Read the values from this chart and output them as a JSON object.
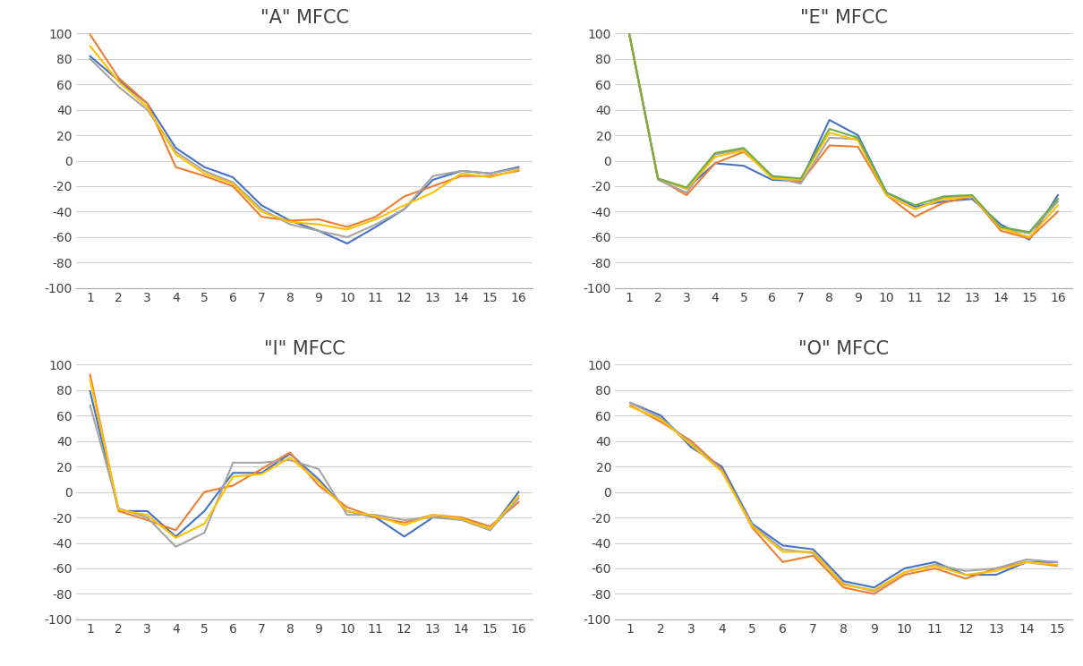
{
  "title_A": "\"A\" MFCC",
  "title_E": "\"E\" MFCC",
  "title_I": "\"I\" MFCC",
  "title_O": "\"O\" MFCC",
  "colors": [
    "#4472C4",
    "#ED7D31",
    "#A5A5A5",
    "#FFC000",
    "#70AD47"
  ],
  "ylim": [
    -100,
    100
  ],
  "yticks": [
    -100,
    -80,
    -60,
    -40,
    -20,
    0,
    20,
    40,
    60,
    80,
    100
  ],
  "A_series": [
    [
      82,
      63,
      45,
      10,
      -5,
      -13,
      -35,
      -47,
      -55,
      -65,
      -52,
      -38,
      -15,
      -8,
      -10,
      -5
    ],
    [
      99,
      65,
      45,
      -5,
      -12,
      -20,
      -44,
      -47,
      -46,
      -52,
      -44,
      -28,
      -20,
      -12,
      -12,
      -8
    ],
    [
      80,
      58,
      40,
      7,
      -8,
      -17,
      -38,
      -50,
      -55,
      -60,
      -50,
      -38,
      -12,
      -8,
      -10,
      -6
    ],
    [
      90,
      62,
      42,
      5,
      -10,
      -18,
      -40,
      -48,
      -50,
      -54,
      -46,
      -35,
      -25,
      -10,
      -13,
      -7
    ]
  ],
  "E_series": [
    [
      99,
      -14,
      -22,
      -2,
      -4,
      -15,
      -16,
      32,
      20,
      -25,
      -36,
      -32,
      -30,
      -50,
      -62,
      -27
    ],
    [
      99,
      -14,
      -27,
      -2,
      7,
      -12,
      -17,
      12,
      11,
      -27,
      -44,
      -33,
      -28,
      -55,
      -61,
      -40
    ],
    [
      99,
      -15,
      -25,
      5,
      9,
      -13,
      -18,
      18,
      17,
      -27,
      -38,
      -29,
      -28,
      -53,
      -57,
      -32
    ],
    [
      99,
      -14,
      -22,
      3,
      8,
      -14,
      -15,
      22,
      16,
      -27,
      -38,
      -30,
      -28,
      -53,
      -60,
      -35
    ],
    [
      99,
      -14,
      -21,
      6,
      10,
      -12,
      -14,
      25,
      18,
      -25,
      -35,
      -28,
      -27,
      -52,
      -56,
      -30
    ]
  ],
  "I_series": [
    [
      79,
      -15,
      -15,
      -35,
      -15,
      15,
      15,
      30,
      10,
      -15,
      -20,
      -35,
      -20,
      -20,
      -30,
      0
    ],
    [
      92,
      -15,
      -22,
      -30,
      0,
      5,
      18,
      31,
      5,
      -12,
      -20,
      -24,
      -18,
      -20,
      -27,
      -8
    ],
    [
      68,
      -13,
      -20,
      -43,
      -32,
      23,
      23,
      25,
      18,
      -18,
      -18,
      -22,
      -20,
      -22,
      -30,
      -5
    ],
    [
      88,
      -14,
      -18,
      -36,
      -25,
      12,
      14,
      27,
      8,
      -15,
      -19,
      -26,
      -18,
      -21,
      -29,
      -3
    ]
  ],
  "O_series": [
    [
      70,
      60,
      35,
      20,
      -25,
      -42,
      -45,
      -70,
      -75,
      -60,
      -55,
      -65,
      -65,
      -55,
      -55
    ],
    [
      68,
      55,
      40,
      18,
      -28,
      -55,
      -50,
      -75,
      -80,
      -65,
      -60,
      -68,
      -60,
      -55,
      -58
    ],
    [
      70,
      58,
      38,
      17,
      -26,
      -45,
      -48,
      -72,
      -78,
      -63,
      -57,
      -62,
      -60,
      -53,
      -55
    ],
    [
      67,
      57,
      37,
      16,
      -27,
      -47,
      -47,
      -73,
      -77,
      -63,
      -58,
      -65,
      -62,
      -55,
      -57
    ]
  ],
  "A_xticks": [
    1,
    2,
    3,
    4,
    5,
    6,
    7,
    8,
    9,
    10,
    11,
    12,
    13,
    14,
    15,
    16
  ],
  "E_xticks": [
    1,
    2,
    3,
    4,
    5,
    6,
    7,
    8,
    9,
    10,
    11,
    12,
    13,
    14,
    15,
    16
  ],
  "I_xticks": [
    1,
    2,
    3,
    4,
    5,
    6,
    7,
    8,
    9,
    10,
    11,
    12,
    13,
    14,
    15,
    16
  ],
  "O_xticks": [
    1,
    2,
    3,
    4,
    5,
    6,
    7,
    8,
    9,
    10,
    11,
    12,
    13,
    14,
    15
  ],
  "background_color": "#FFFFFF",
  "grid_color": "#D0D0D0",
  "title_fontsize": 15,
  "tick_fontsize": 10
}
